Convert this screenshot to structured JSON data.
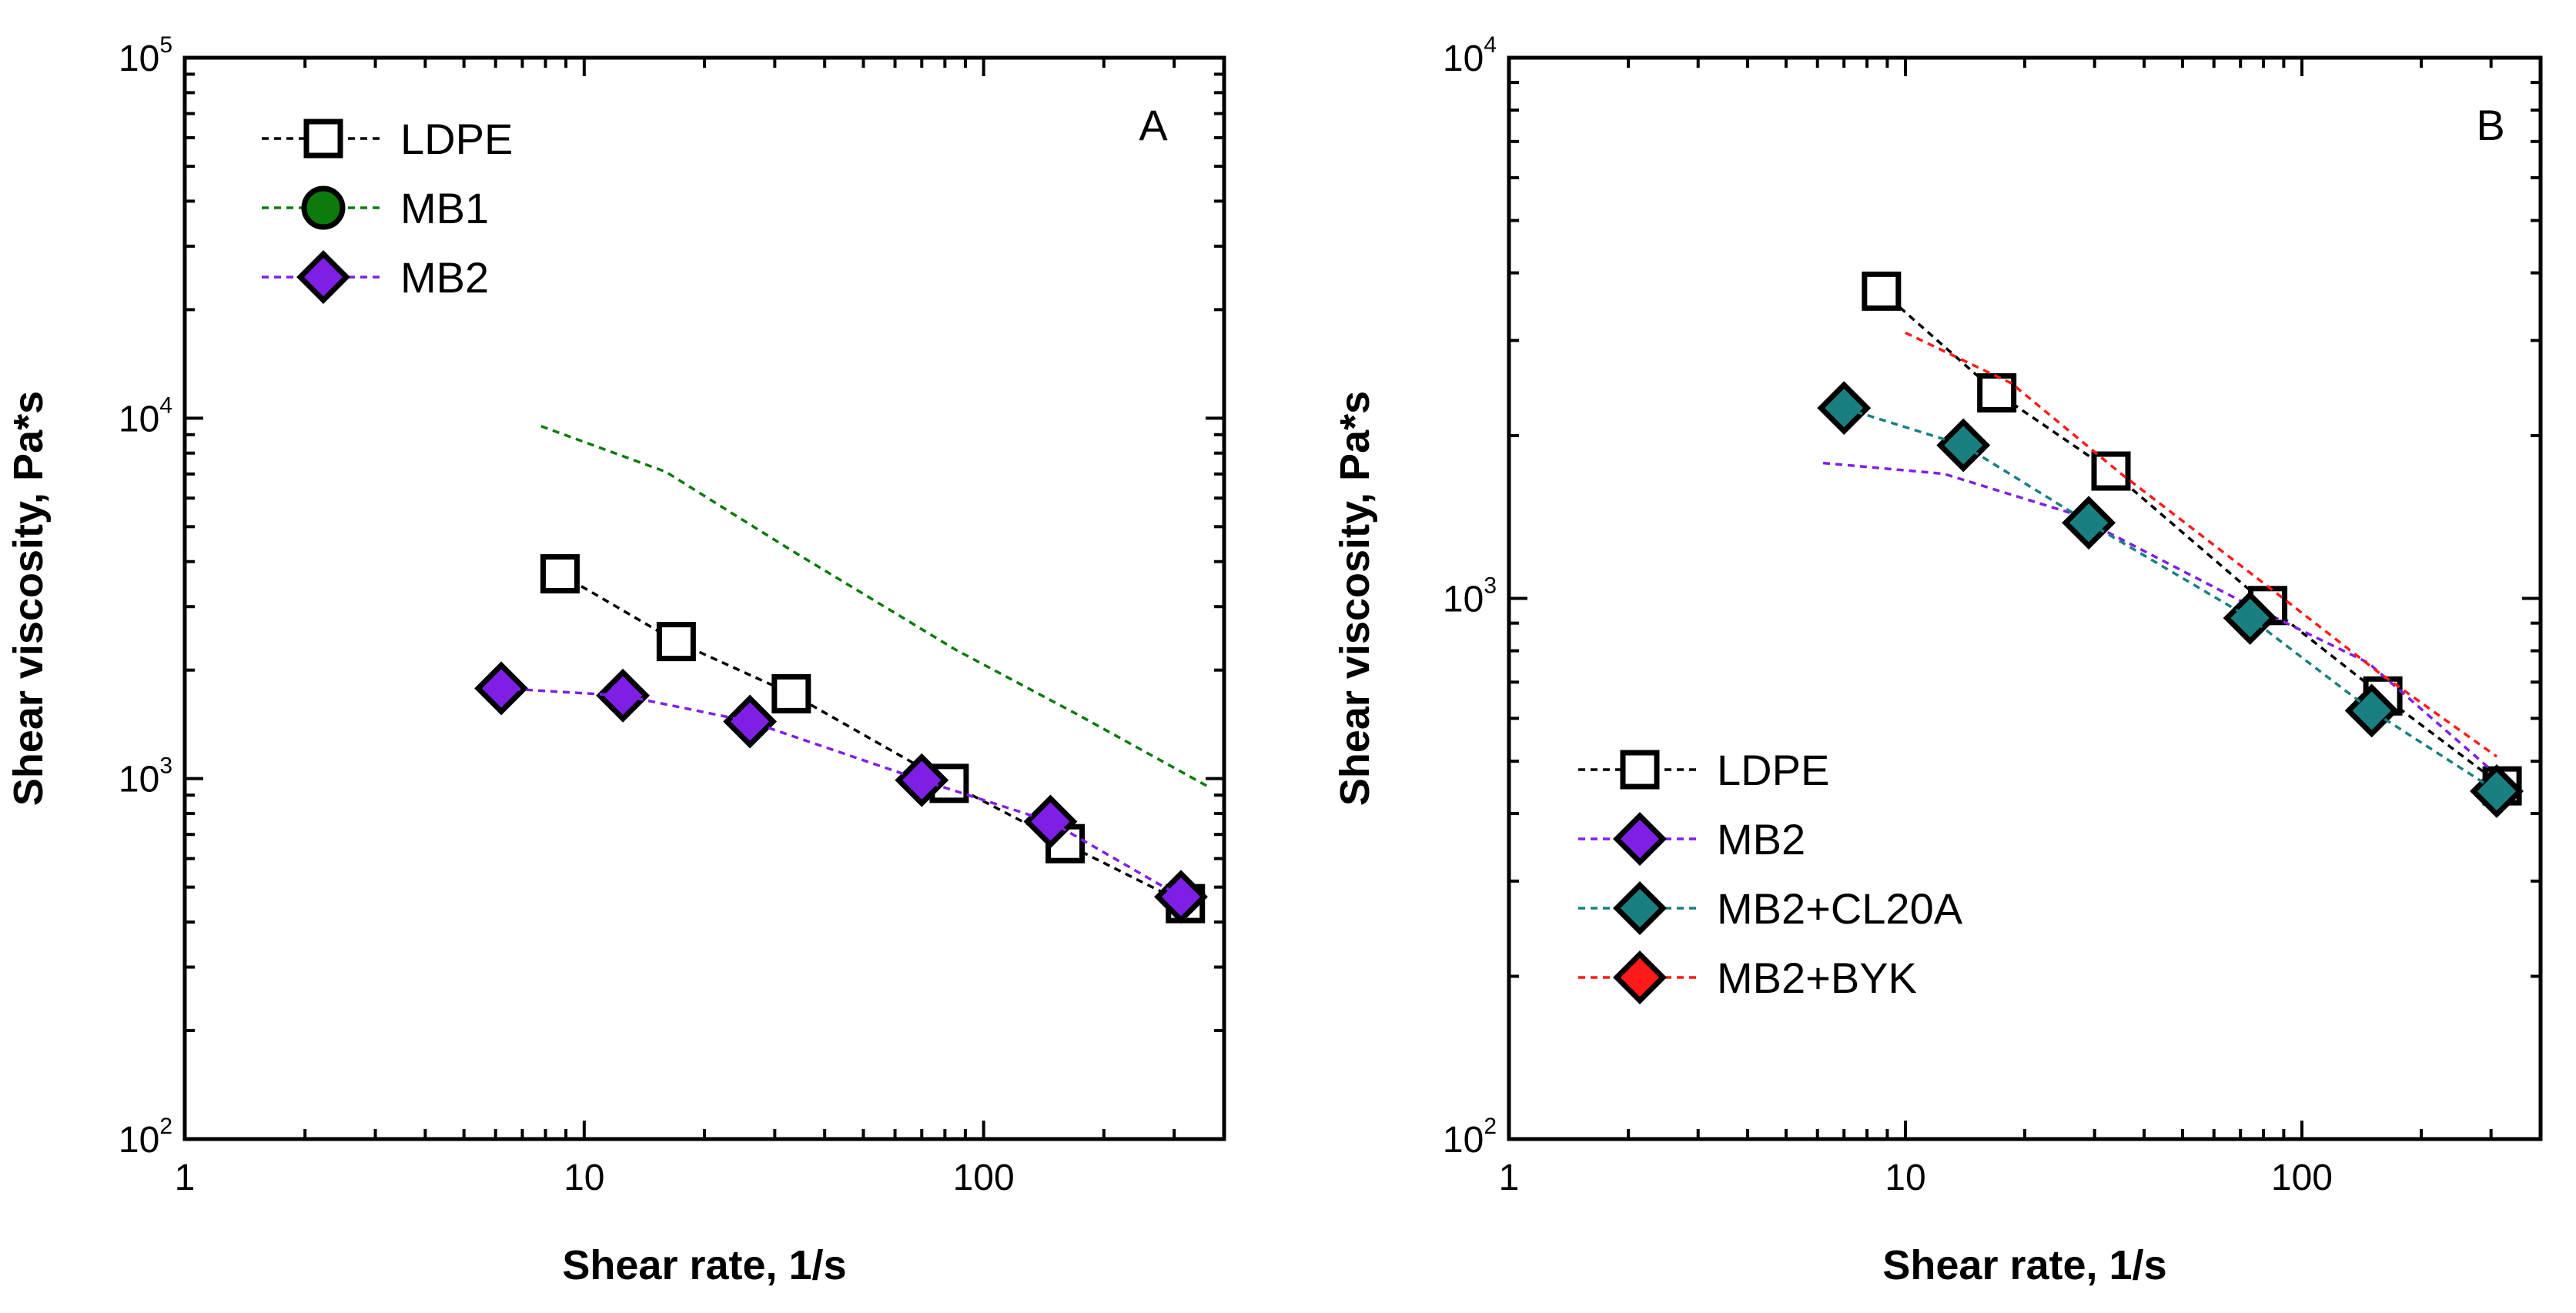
{
  "chart_data": [
    {
      "type": "scatter",
      "panel": "A",
      "xlabel": "Shear rate, 1/s",
      "ylabel": "Shear viscosity, Pa*s",
      "xscale": "log",
      "yscale": "log",
      "xlim": [
        1,
        400
      ],
      "ylim": [
        100,
        100000
      ],
      "x_ticks": [
        {
          "v": 1,
          "b": "1"
        },
        {
          "v": 10,
          "b": "10"
        },
        {
          "v": 100,
          "b": "100"
        }
      ],
      "y_ticks": [
        {
          "v": 100,
          "b": "10",
          "e": "2"
        },
        {
          "v": 1000,
          "b": "10",
          "e": "3"
        },
        {
          "v": 10000,
          "b": "10",
          "e": "4"
        },
        {
          "v": 100000,
          "b": "10",
          "e": "5"
        }
      ],
      "legend_position": "top-left",
      "series": [
        {
          "name": "LDPE",
          "marker": "square",
          "fill": "#ffffff",
          "line_color": "#000000",
          "x": [
            8.7,
            17,
            33,
            82,
            160,
            320
          ],
          "y": [
            3700,
            2400,
            1720,
            970,
            660,
            450
          ]
        },
        {
          "name": "MB1",
          "marker": "circle",
          "fill": "#0c7a0c",
          "line_color": "#0c7a0c",
          "x": [
            7.8,
            16,
            33,
            85,
            173,
            365
          ],
          "y": [
            9500,
            7100,
            4300,
            2280,
            1500,
            950
          ]
        },
        {
          "name": "MB2",
          "marker": "diamond",
          "fill": "#7f1fe6",
          "line_color": "#7f1fe6",
          "x": [
            6.2,
            12.5,
            26,
            70,
            147,
            312
          ],
          "y": [
            1780,
            1700,
            1440,
            990,
            760,
            470
          ]
        }
      ]
    },
    {
      "type": "scatter",
      "panel": "B",
      "xlabel": "Shear rate, 1/s",
      "ylabel": "Shear viscosity, Pa*s",
      "xscale": "log",
      "yscale": "log",
      "xlim": [
        1,
        400
      ],
      "ylim": [
        100,
        10000
      ],
      "x_ticks": [
        {
          "v": 1,
          "b": "1"
        },
        {
          "v": 10,
          "b": "10"
        },
        {
          "v": 100,
          "b": "100"
        }
      ],
      "y_ticks": [
        {
          "v": 100,
          "b": "10",
          "e": "2"
        },
        {
          "v": 1000,
          "b": "10",
          "e": "3"
        },
        {
          "v": 10000,
          "b": "10",
          "e": "4"
        }
      ],
      "legend_position": "bottom-left",
      "series": [
        {
          "name": "LDPE",
          "marker": "square",
          "fill": "#ffffff",
          "line_color": "#000000",
          "x": [
            8.7,
            17,
            33,
            82,
            160,
            320
          ],
          "y": [
            3700,
            2400,
            1720,
            970,
            660,
            450
          ]
        },
        {
          "name": "MB2",
          "marker": "diamond",
          "fill": "#7f1fe6",
          "line_color": "#7f1fe6",
          "x": [
            6.2,
            12.5,
            26,
            70,
            147,
            312
          ],
          "y": [
            1780,
            1700,
            1440,
            990,
            760,
            470
          ]
        },
        {
          "name": "MB2+CL20A",
          "marker": "diamond",
          "fill": "#1a7f80",
          "line_color": "#1a7f80",
          "x": [
            7.0,
            14,
            29,
            74,
            150,
            310
          ],
          "y": [
            2250,
            1920,
            1380,
            920,
            620,
            440
          ]
        },
        {
          "name": "MB2+BYK",
          "marker": "diamond",
          "fill": "#ff1a1a",
          "line_color": "#ff1a1a",
          "x": [
            10,
            18.5,
            35,
            81,
            156,
            310
          ],
          "y": [
            3100,
            2500,
            1700,
            1060,
            730,
            510
          ]
        }
      ]
    }
  ]
}
